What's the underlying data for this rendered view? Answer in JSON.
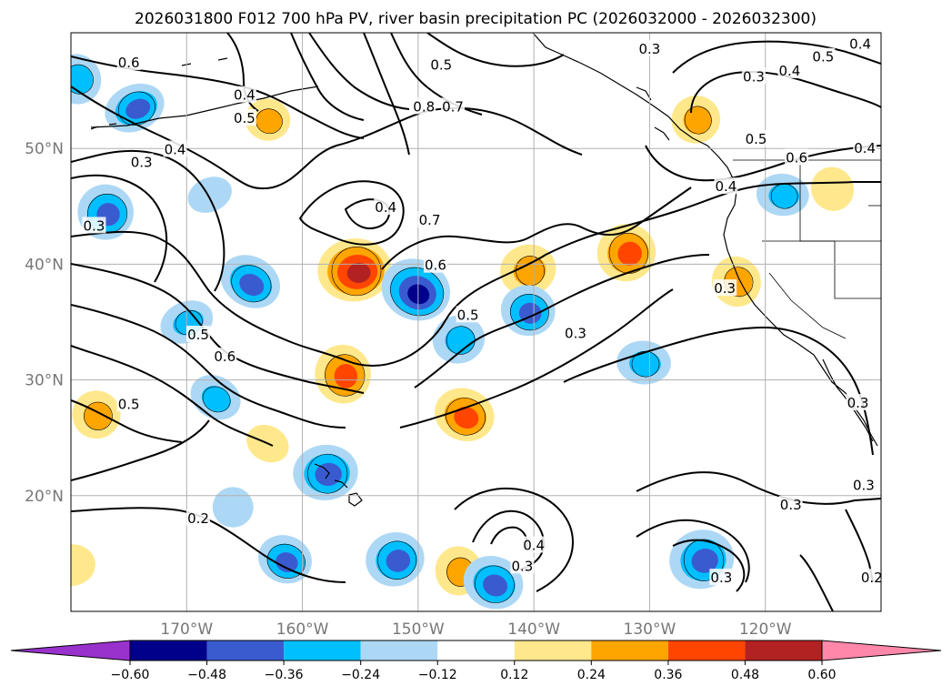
{
  "chart_data": {
    "type": "heatmap",
    "title": "2026031800 F012 700 hPa PV, river basin precipitation PC (2026032000 - 2026032300)",
    "map": {
      "projection": "PlateCarree",
      "lon_range": [
        -180,
        -110
      ],
      "lat_range": [
        10,
        60
      ],
      "lat_ticks": [
        {
          "value": 20,
          "label": "20°N"
        },
        {
          "value": 30,
          "label": "30°N"
        },
        {
          "value": 40,
          "label": "40°N"
        },
        {
          "value": 50,
          "label": "50°N"
        }
      ],
      "lon_ticks": [
        {
          "value": -170,
          "label": "170°W"
        },
        {
          "value": -160,
          "label": "160°W"
        },
        {
          "value": -150,
          "label": "150°W"
        },
        {
          "value": -140,
          "label": "140°W"
        },
        {
          "value": -130,
          "label": "130°W"
        },
        {
          "value": -120,
          "label": "120°W"
        }
      ],
      "grid": true
    },
    "colorbar": {
      "orientation": "horizontal",
      "extend": "both",
      "ticks": [
        "−0.60",
        "−0.48",
        "−0.36",
        "−0.24",
        "−0.12",
        "0.12",
        "0.24",
        "0.36",
        "0.48",
        "0.60"
      ],
      "bins": [
        {
          "range": "< -0.60",
          "color": "#9932cc"
        },
        {
          "range": "-0.60 to -0.48",
          "color": "#00008b"
        },
        {
          "range": "-0.48 to -0.36",
          "color": "#3a5bd0"
        },
        {
          "range": "-0.36 to -0.24",
          "color": "#00bfff"
        },
        {
          "range": "-0.24 to -0.12",
          "color": "#add8f5"
        },
        {
          "range": "-0.12 to 0.12",
          "color": "#ffffff"
        },
        {
          "range": "0.12 to 0.24",
          "color": "#ffe88c"
        },
        {
          "range": "0.24 to 0.36",
          "color": "#ffa500"
        },
        {
          "range": "0.36 to 0.48",
          "color": "#ff4500"
        },
        {
          "range": "0.48 to 0.60",
          "color": "#b22222"
        },
        {
          "range": "> 0.60",
          "color": "#ff88aa"
        }
      ]
    },
    "precip_blobs": [
      {
        "lon": -179.5,
        "lat": 56,
        "value": -0.3
      },
      {
        "lon": -174.5,
        "lat": 53.5,
        "value": -0.36
      },
      {
        "lon": -177,
        "lat": 44.5,
        "value": -0.4
      },
      {
        "lon": -164.5,
        "lat": 38.5,
        "value": -0.42
      },
      {
        "lon": -155.5,
        "lat": 39.5,
        "value": 0.5
      },
      {
        "lon": -150.2,
        "lat": 37.8,
        "value": -0.58
      },
      {
        "lon": -146.5,
        "lat": 33.5,
        "value": -0.3
      },
      {
        "lon": -156.5,
        "lat": 30.5,
        "value": 0.4
      },
      {
        "lon": -146,
        "lat": 27,
        "value": 0.4
      },
      {
        "lon": -140.5,
        "lat": 39.5,
        "value": 0.3
      },
      {
        "lon": -140.5,
        "lat": 36,
        "value": -0.38
      },
      {
        "lon": -132,
        "lat": 41,
        "value": 0.38
      },
      {
        "lon": -130.5,
        "lat": 31.5,
        "value": -0.28
      },
      {
        "lon": -122.5,
        "lat": 38.5,
        "value": 0.3
      },
      {
        "lon": -170,
        "lat": 35,
        "value": -0.28
      },
      {
        "lon": -177.8,
        "lat": 27,
        "value": 0.3
      },
      {
        "lon": -167.5,
        "lat": 28.5,
        "value": -0.3
      },
      {
        "lon": -158,
        "lat": 22,
        "value": -0.4
      },
      {
        "lon": -161.5,
        "lat": 14.5,
        "value": -0.38
      },
      {
        "lon": -152,
        "lat": 14.5,
        "value": -0.38
      },
      {
        "lon": -146.5,
        "lat": 13.5,
        "value": 0.28
      },
      {
        "lon": -143.5,
        "lat": 12.5,
        "value": -0.4
      },
      {
        "lon": -125.5,
        "lat": 14.5,
        "value": -0.4
      },
      {
        "lon": -163,
        "lat": 52.5,
        "value": 0.26
      },
      {
        "lon": -126,
        "lat": 52.5,
        "value": 0.26
      },
      {
        "lon": -118.5,
        "lat": 46,
        "value": -0.26
      },
      {
        "lon": -114.2,
        "lat": 46.5,
        "value": 0.22
      },
      {
        "lon": -168,
        "lat": 46,
        "value": -0.18
      },
      {
        "lon": -166,
        "lat": 19,
        "value": -0.2
      },
      {
        "lon": -163,
        "lat": 24.5,
        "value": 0.2
      },
      {
        "lon": -180,
        "lat": 14,
        "value": 0.22
      }
    ],
    "pv_contours": [
      {
        "value": 0.6,
        "label": "0.6"
      },
      {
        "value": 0.4,
        "label": "0.4"
      },
      {
        "value": 0.5,
        "label": "0.5"
      },
      {
        "value": 0.8,
        "label": "0.8"
      },
      {
        "value": 0.7,
        "label": "0.7"
      },
      {
        "value": 0.3,
        "label": "0.3"
      },
      {
        "value": 0.2,
        "label": "0.2"
      }
    ],
    "contour_labels": [
      {
        "text": "0.6",
        "lon": -175,
        "lat": 57.4
      },
      {
        "text": "0.4",
        "lon": -165,
        "lat": 54.6
      },
      {
        "text": "0.5",
        "lon": -165,
        "lat": 52.6
      },
      {
        "text": "0.5",
        "lon": -148,
        "lat": 57.2
      },
      {
        "text": "0.8",
        "lon": -149.5,
        "lat": 53.6
      },
      {
        "text": "0.7",
        "lon": -147,
        "lat": 53.6
      },
      {
        "text": "0.3",
        "lon": -130,
        "lat": 58.6
      },
      {
        "text": "0.3",
        "lon": -121,
        "lat": 56.2
      },
      {
        "text": "0.4",
        "lon": -117.9,
        "lat": 56.7
      },
      {
        "text": "0.5",
        "lon": -115,
        "lat": 57.9
      },
      {
        "text": "0.4",
        "lon": -111.8,
        "lat": 59.0
      },
      {
        "text": "0.4",
        "lon": -171,
        "lat": 49.9
      },
      {
        "text": "0.3",
        "lon": -173.9,
        "lat": 48.8
      },
      {
        "text": "0.5",
        "lon": -120.8,
        "lat": 50.8
      },
      {
        "text": "0.4",
        "lon": -111.4,
        "lat": 50.0
      },
      {
        "text": "0.6",
        "lon": -117.3,
        "lat": 49.2
      },
      {
        "text": "0.4",
        "lon": -152.8,
        "lat": 44.9
      },
      {
        "text": "0.3",
        "lon": -178,
        "lat": 43.3
      },
      {
        "text": "0.7",
        "lon": -149,
        "lat": 43.8
      },
      {
        "text": "0.4",
        "lon": -123.4,
        "lat": 46.7
      },
      {
        "text": "0.6",
        "lon": -148.5,
        "lat": 39.9
      },
      {
        "text": "0.5",
        "lon": -145.7,
        "lat": 35.6
      },
      {
        "text": "0.5",
        "lon": -169,
        "lat": 33.9
      },
      {
        "text": "0.6",
        "lon": -166.7,
        "lat": 32.0
      },
      {
        "text": "0.3",
        "lon": -136.4,
        "lat": 34.0
      },
      {
        "text": "0.3",
        "lon": -123.5,
        "lat": 37.9
      },
      {
        "text": "0.5",
        "lon": -175,
        "lat": 27.9
      },
      {
        "text": "0.3",
        "lon": -112,
        "lat": 28.0
      },
      {
        "text": "0.2",
        "lon": -169,
        "lat": 18.0
      },
      {
        "text": "0.3",
        "lon": -117.8,
        "lat": 19.2
      },
      {
        "text": "0.3",
        "lon": -111.5,
        "lat": 20.9
      },
      {
        "text": "0.4",
        "lon": -140,
        "lat": 15.7
      },
      {
        "text": "0.3",
        "lon": -141,
        "lat": 13.9
      },
      {
        "text": "0.3",
        "lon": -123.8,
        "lat": 12.9
      },
      {
        "text": "0.2",
        "lon": -110.8,
        "lat": 12.9
      }
    ]
  }
}
